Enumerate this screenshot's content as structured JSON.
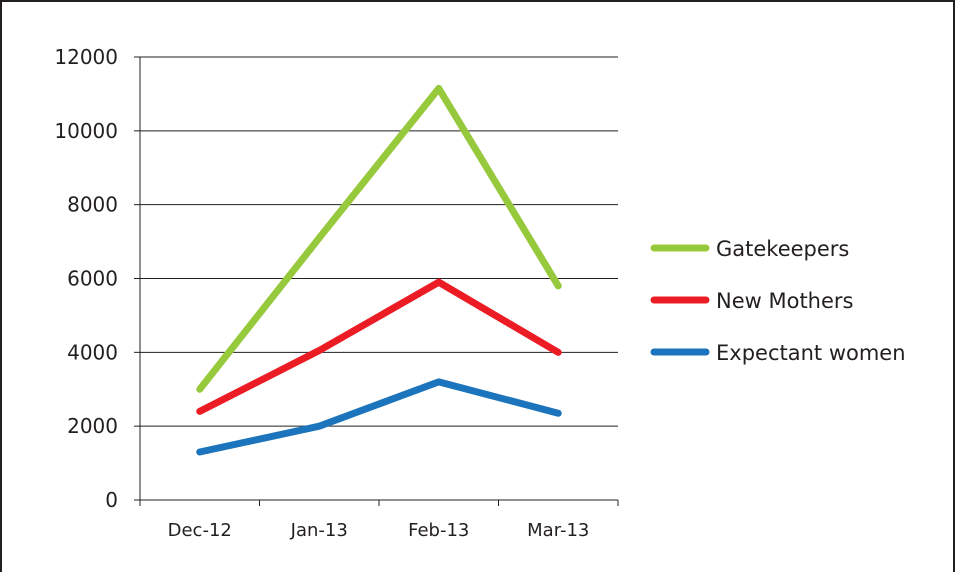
{
  "chart_data": {
    "type": "line",
    "categories": [
      "Dec-12",
      "Jan-13",
      "Feb-13",
      "Mar-13"
    ],
    "series": [
      {
        "name": "Gatekeepers",
        "values": [
          3000,
          7100,
          11150,
          5800
        ],
        "color": "#97c93d"
      },
      {
        "name": "New Mothers",
        "values": [
          2400,
          4050,
          5900,
          4000
        ],
        "color": "#ec1c24"
      },
      {
        "name": "Expectant women",
        "values": [
          1300,
          2000,
          3200,
          2350
        ],
        "color": "#1c75bc"
      }
    ],
    "yticks": [
      0,
      2000,
      4000,
      6000,
      8000,
      10000,
      12000
    ],
    "ylim": [
      0,
      12000
    ],
    "grid": true,
    "legend_position": "right",
    "title": "",
    "xlabel": "",
    "ylabel": ""
  }
}
